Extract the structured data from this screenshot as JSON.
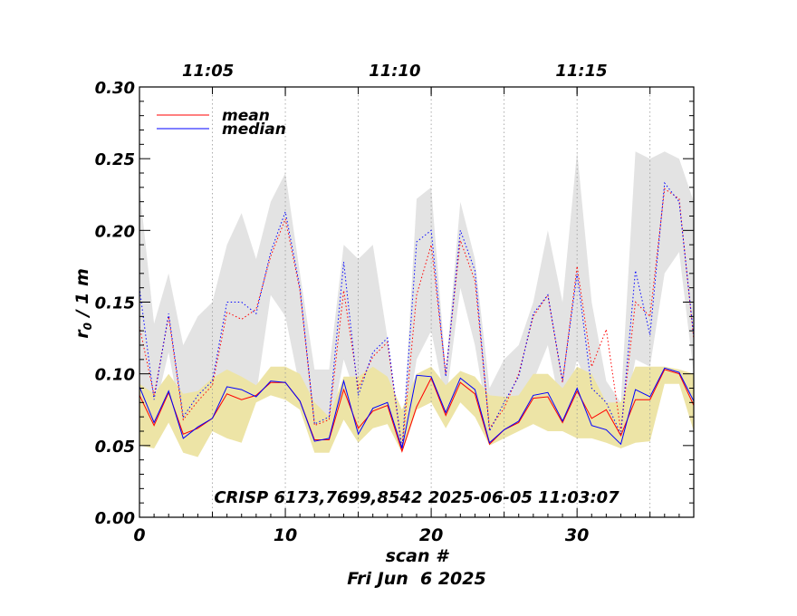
{
  "chart_data": {
    "type": "line",
    "xlabel": "scan #",
    "ylabel_main": "r",
    "ylabel_sub": "0",
    "ylabel_rest": " / 1 m",
    "date_label": "Fri Jun  6 2025",
    "annotation": "CRISP 6173,7699,8542 2025-06-05 11:03:07",
    "xlim": [
      0,
      38
    ],
    "ylim": [
      0.0,
      0.3
    ],
    "x_ticks": [
      0,
      10,
      20,
      30
    ],
    "x_tick_labels": [
      "0",
      "10",
      "20",
      "30"
    ],
    "y_ticks": [
      0.0,
      0.05,
      0.1,
      0.15,
      0.2,
      0.25,
      0.3
    ],
    "y_tick_labels": [
      "0.00",
      "0.05",
      "0.10",
      "0.15",
      "0.20",
      "0.25",
      "0.30"
    ],
    "top_axis": {
      "tick_positions": [
        5,
        10,
        15,
        20,
        25,
        30,
        35
      ],
      "labels": [
        {
          "x": 4.7,
          "text": "11:05"
        },
        {
          "x": 17.5,
          "text": "11:10"
        },
        {
          "x": 30.3,
          "text": "11:15"
        }
      ]
    },
    "legend": {
      "position": "top-left",
      "entries": [
        {
          "name": "mean",
          "color": "#ff0000"
        },
        {
          "name": "median",
          "color": "#0000ff"
        }
      ]
    },
    "x": [
      0,
      1,
      2,
      3,
      4,
      5,
      6,
      7,
      8,
      9,
      10,
      11,
      12,
      13,
      14,
      15,
      16,
      17,
      18,
      19,
      20,
      21,
      22,
      23,
      24,
      25,
      26,
      27,
      28,
      29,
      30,
      31,
      32,
      33,
      34,
      35,
      36,
      37,
      38
    ],
    "bands": [
      {
        "name": "gray range",
        "color": "#e3e3e3",
        "upper": [
          0.23,
          0.135,
          0.17,
          0.12,
          0.14,
          0.15,
          0.19,
          0.212,
          0.18,
          0.22,
          0.24,
          0.17,
          0.103,
          0.103,
          0.19,
          0.18,
          0.19,
          0.125,
          0.045,
          0.222,
          0.23,
          0.103,
          0.22,
          0.18,
          0.09,
          0.11,
          0.12,
          0.15,
          0.2,
          0.15,
          0.255,
          0.15,
          0.095,
          0.08,
          0.255,
          0.25,
          0.255,
          0.25,
          0.22
        ],
        "lower": [
          0.09,
          0.072,
          0.115,
          0.06,
          0.058,
          0.064,
          0.082,
          0.08,
          0.085,
          0.155,
          0.14,
          0.09,
          0.055,
          0.055,
          0.11,
          0.08,
          0.095,
          0.09,
          0.045,
          0.11,
          0.13,
          0.08,
          0.16,
          0.12,
          0.06,
          0.06,
          0.07,
          0.095,
          0.12,
          0.07,
          0.11,
          0.085,
          0.06,
          0.057,
          0.11,
          0.105,
          0.17,
          0.185,
          0.1
        ]
      },
      {
        "name": "yellow range",
        "color": "#ede4a6",
        "upper": [
          0.093,
          0.086,
          0.1,
          0.086,
          0.088,
          0.097,
          0.103,
          0.098,
          0.092,
          0.105,
          0.105,
          0.1,
          0.08,
          0.07,
          0.098,
          0.098,
          0.105,
          0.098,
          0.075,
          0.1,
          0.105,
          0.092,
          0.102,
          0.098,
          0.085,
          0.084,
          0.085,
          0.1,
          0.1,
          0.09,
          0.105,
          0.1,
          0.08,
          0.08,
          0.105,
          0.105,
          0.105,
          0.103,
          0.1
        ],
        "lower": [
          0.05,
          0.048,
          0.066,
          0.045,
          0.042,
          0.06,
          0.055,
          0.052,
          0.08,
          0.085,
          0.082,
          0.075,
          0.045,
          0.045,
          0.068,
          0.052,
          0.062,
          0.065,
          0.045,
          0.075,
          0.08,
          0.062,
          0.08,
          0.07,
          0.05,
          0.055,
          0.06,
          0.065,
          0.06,
          0.06,
          0.055,
          0.055,
          0.052,
          0.048,
          0.052,
          0.053,
          0.093,
          0.093,
          0.06
        ]
      }
    ],
    "series": [
      {
        "name": "mean (upper)",
        "color": "#ff0000",
        "style": "dotted",
        "values": [
          0.133,
          0.085,
          0.14,
          0.068,
          0.081,
          0.092,
          0.143,
          0.138,
          0.145,
          0.182,
          0.208,
          0.158,
          0.064,
          0.068,
          0.158,
          0.09,
          0.112,
          0.122,
          0.047,
          0.155,
          0.19,
          0.1,
          0.193,
          0.165,
          0.062,
          0.076,
          0.1,
          0.14,
          0.155,
          0.094,
          0.175,
          0.105,
          0.131,
          0.06,
          0.15,
          0.14,
          0.229,
          0.222,
          0.124
        ]
      },
      {
        "name": "median (upper)",
        "color": "#0000ff",
        "style": "dotted",
        "values": [
          0.16,
          0.082,
          0.142,
          0.07,
          0.085,
          0.095,
          0.15,
          0.15,
          0.142,
          0.185,
          0.213,
          0.16,
          0.065,
          0.07,
          0.178,
          0.085,
          0.115,
          0.125,
          0.048,
          0.192,
          0.2,
          0.098,
          0.2,
          0.172,
          0.06,
          0.08,
          0.098,
          0.142,
          0.155,
          0.095,
          0.17,
          0.09,
          0.08,
          0.058,
          0.172,
          0.127,
          0.233,
          0.22,
          0.126
        ]
      },
      {
        "name": "mean",
        "color": "#ff0000",
        "style": "solid",
        "values": [
          0.085,
          0.064,
          0.087,
          0.058,
          0.062,
          0.069,
          0.086,
          0.082,
          0.085,
          0.094,
          0.094,
          0.081,
          0.054,
          0.054,
          0.089,
          0.062,
          0.074,
          0.078,
          0.046,
          0.077,
          0.097,
          0.071,
          0.094,
          0.086,
          0.051,
          0.061,
          0.066,
          0.083,
          0.084,
          0.066,
          0.088,
          0.069,
          0.075,
          0.057,
          0.082,
          0.082,
          0.103,
          0.1,
          0.078
        ]
      },
      {
        "name": "median",
        "color": "#0000ff",
        "style": "solid",
        "values": [
          0.091,
          0.066,
          0.088,
          0.055,
          0.063,
          0.069,
          0.091,
          0.089,
          0.084,
          0.095,
          0.094,
          0.081,
          0.053,
          0.055,
          0.095,
          0.058,
          0.076,
          0.08,
          0.048,
          0.099,
          0.098,
          0.073,
          0.097,
          0.089,
          0.052,
          0.061,
          0.067,
          0.085,
          0.087,
          0.067,
          0.09,
          0.064,
          0.061,
          0.051,
          0.089,
          0.084,
          0.104,
          0.101,
          0.081
        ]
      }
    ]
  }
}
